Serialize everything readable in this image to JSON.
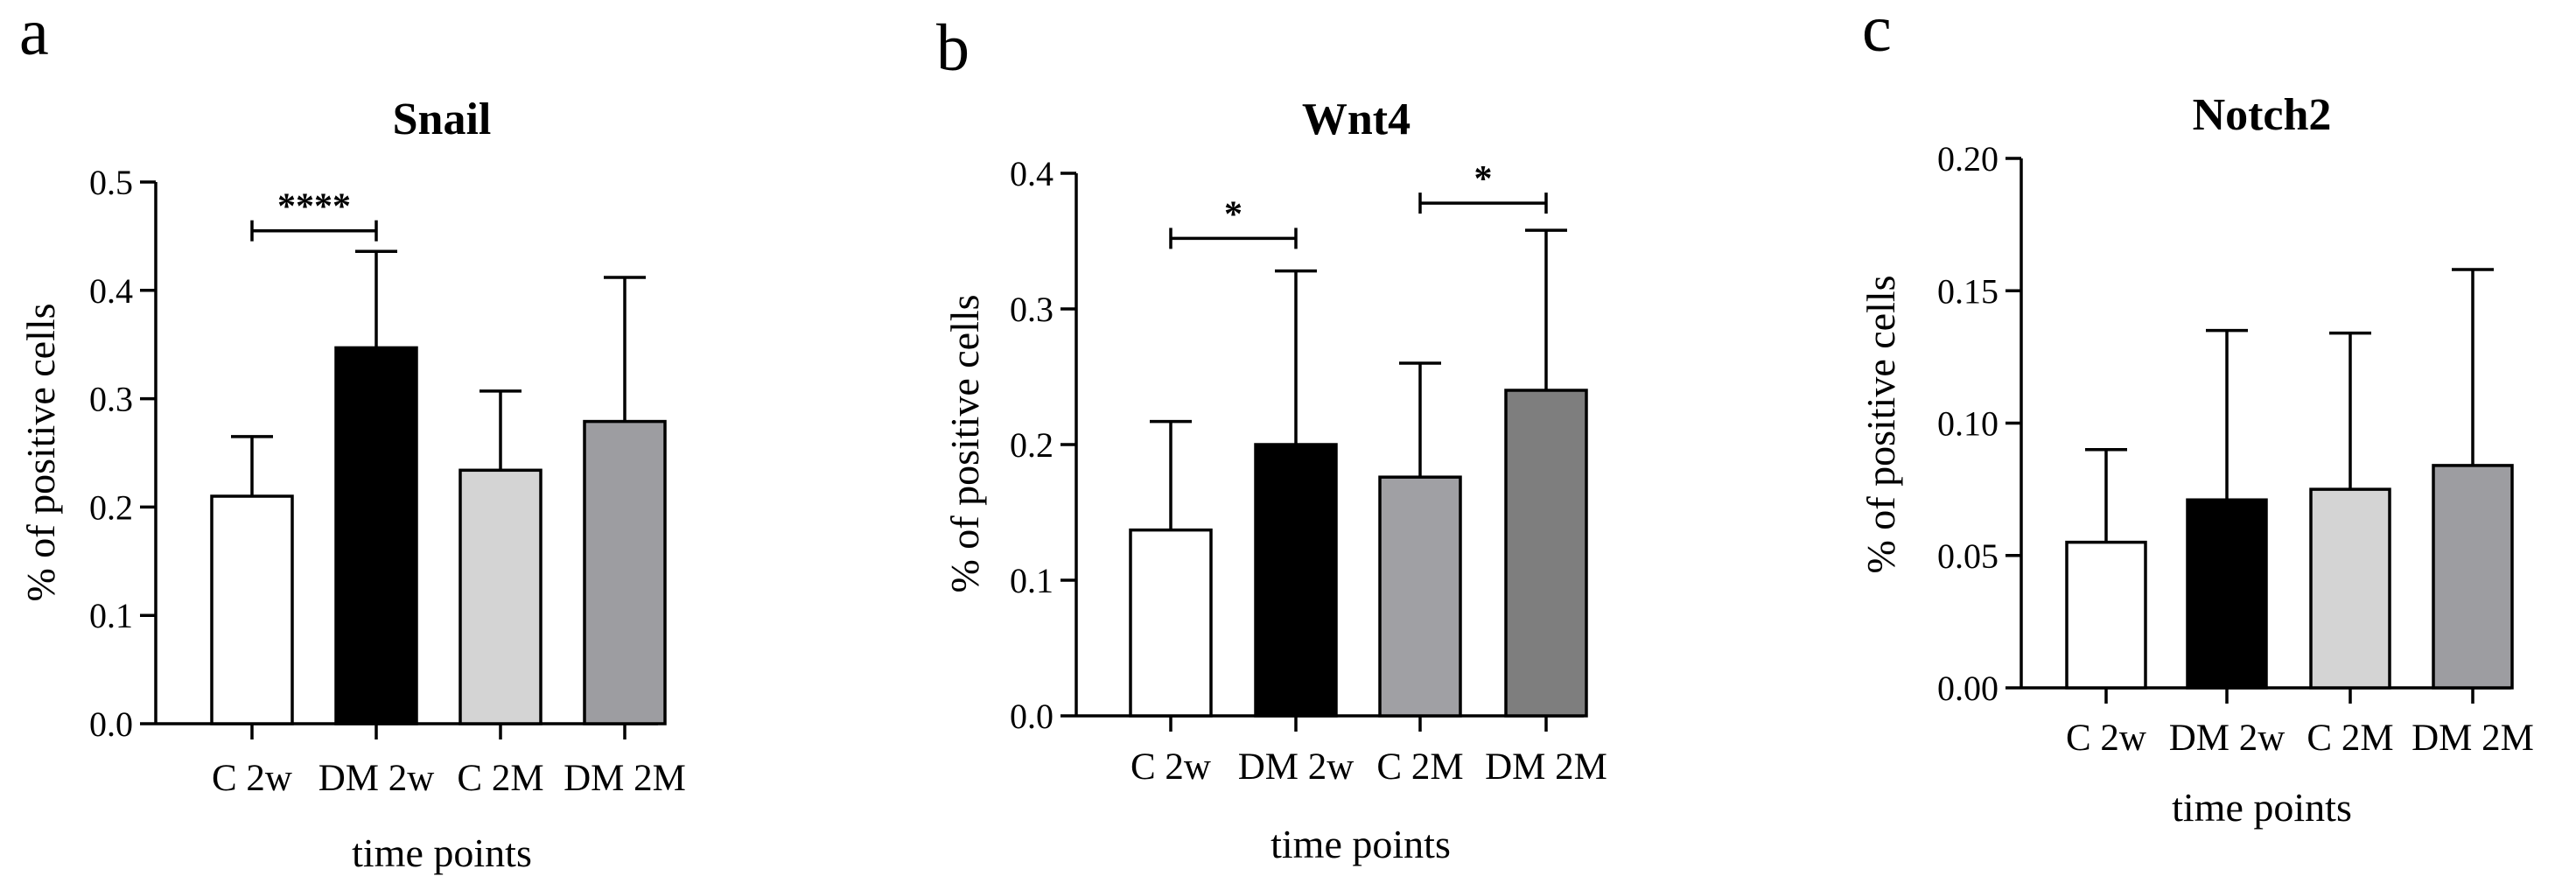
{
  "chart_data": [
    {
      "type": "bar",
      "panel": "a",
      "title": "Snail",
      "xlabel": "time points",
      "ylabel": "% of positive cells",
      "ylim": [
        0,
        0.5
      ],
      "yticks": [
        "0.0",
        "0.1",
        "0.2",
        "0.3",
        "0.4",
        "0.5"
      ],
      "categories": [
        "C 2w",
        "DM 2w",
        "C 2M",
        "DM 2M"
      ],
      "values": [
        0.21,
        0.347,
        0.234,
        0.279
      ],
      "errors": [
        0.055,
        0.089,
        0.073,
        0.133
      ],
      "colors": [
        "#ffffff",
        "#000000",
        "#d4d4d4",
        "#9d9da1"
      ],
      "significance": [
        {
          "from": 0,
          "to": 1,
          "label": "****",
          "y": 0.455
        }
      ]
    },
    {
      "type": "bar",
      "panel": "b",
      "title": "Wnt4",
      "xlabel": "time points",
      "ylabel": "% of positive cells",
      "ylim": [
        0,
        0.4
      ],
      "yticks": [
        "0.0",
        "0.1",
        "0.2",
        "0.3",
        "0.4"
      ],
      "categories": [
        "C 2w",
        "DM 2w",
        "C 2M",
        "DM 2M"
      ],
      "values": [
        0.137,
        0.2,
        0.176,
        0.24
      ],
      "errors": [
        0.08,
        0.128,
        0.084,
        0.118
      ],
      "colors": [
        "#ffffff",
        "#000000",
        "#a0a0a4",
        "#7e7e7e"
      ],
      "significance": [
        {
          "from": 0,
          "to": 1,
          "label": "*",
          "y": 0.352
        },
        {
          "from": 2,
          "to": 3,
          "label": "*",
          "y": 0.378
        }
      ]
    },
    {
      "type": "bar",
      "panel": "c",
      "title": "Notch2",
      "xlabel": "time points",
      "ylabel": "% of positive cells",
      "ylim": [
        0,
        0.2
      ],
      "yticks": [
        "0.00",
        "0.05",
        "0.10",
        "0.15",
        "0.20"
      ],
      "categories": [
        "C 2w",
        "DM 2w",
        "C 2M",
        "DM 2M"
      ],
      "values": [
        0.055,
        0.071,
        0.075,
        0.084
      ],
      "errors": [
        0.035,
        0.064,
        0.059,
        0.074
      ],
      "colors": [
        "#ffffff",
        "#000000",
        "#d4d4d4",
        "#9d9da1"
      ],
      "significance": []
    }
  ]
}
